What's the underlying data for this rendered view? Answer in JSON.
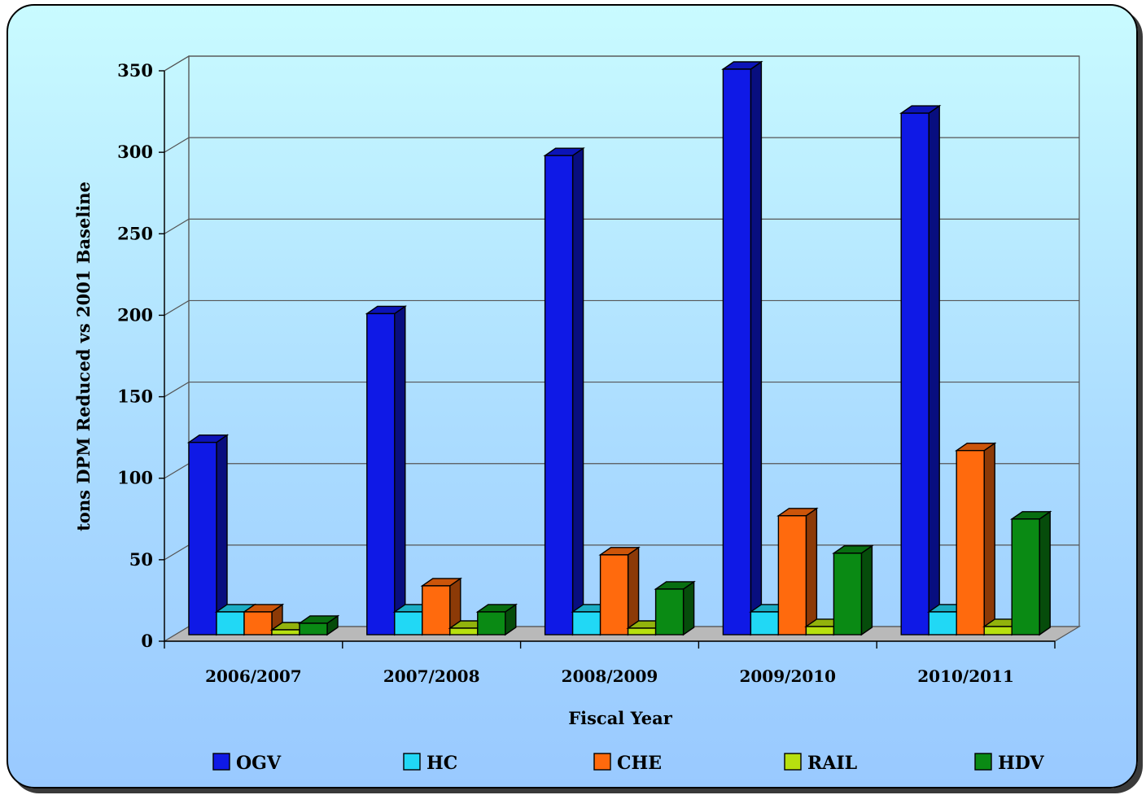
{
  "chart_data": {
    "type": "bar",
    "categories": [
      "2006/2007",
      "2007/2008",
      "2008/2009",
      "2009/2010",
      "2010/2011"
    ],
    "series": [
      {
        "name": "OGV",
        "values": [
          118,
          197,
          294,
          347,
          320
        ],
        "color": "#0f19e6"
      },
      {
        "name": "HC",
        "values": [
          14,
          14,
          14,
          14,
          14
        ],
        "color": "#21d8f5"
      },
      {
        "name": "CHE",
        "values": [
          14,
          30,
          49,
          73,
          113
        ],
        "color": "#ff6a0d"
      },
      {
        "name": "RAIL",
        "values": [
          3,
          4,
          4,
          5,
          5
        ],
        "color": "#b7e00f"
      },
      {
        "name": "HDV",
        "values": [
          7,
          14,
          28,
          50,
          71
        ],
        "color": "#0a8a14"
      }
    ],
    "ylim": [
      0,
      350
    ],
    "yticks": [
      0,
      50,
      100,
      150,
      200,
      250,
      300,
      350
    ],
    "ylabel": "tons DPM Reduced vs 2001 Baseline",
    "xlabel": "Fiscal Year",
    "grid": true,
    "legend_position": "bottom"
  }
}
